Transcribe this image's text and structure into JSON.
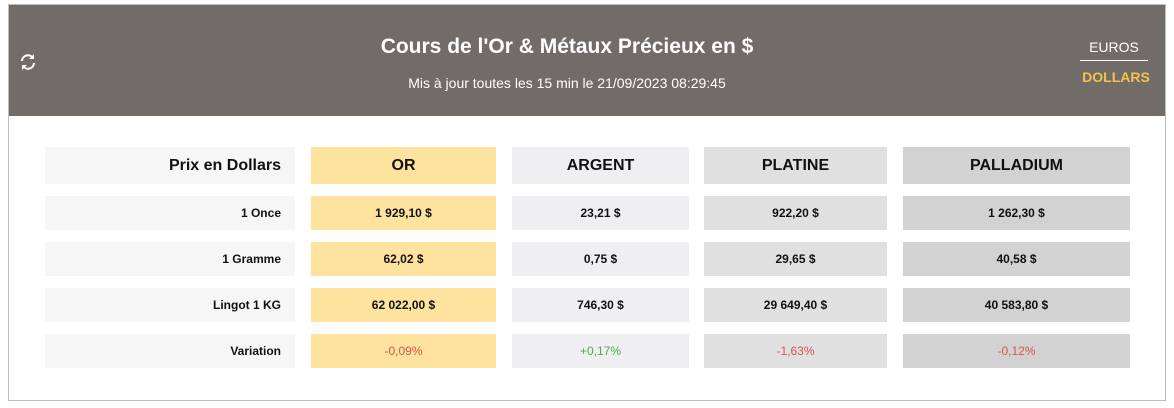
{
  "header": {
    "title": "Cours de l'Or & Métaux Précieux en $",
    "subtitle": "Mis à jour toutes les 15 min le 21/09/2023 08:29:45",
    "currencies": [
      "EUROS",
      "DOLLARS"
    ]
  },
  "table": {
    "columns": [
      "Prix en Dollars",
      "OR",
      "ARGENT",
      "PLATINE",
      "PALLADIUM"
    ],
    "rows": [
      [
        "1 Once",
        "1 929,10 $",
        "23,21 $",
        "922,20 $",
        "1 262,30 $"
      ],
      [
        "1 Gramme",
        "62,02 $",
        "0,75 $",
        "29,65 $",
        "40,58 $"
      ],
      [
        "Lingot 1 KG",
        "62 022,00 $",
        "746,30 $",
        "29 649,40 $",
        "40 583,80 $"
      ],
      [
        "Variation",
        "-0,09%",
        "+0,17%",
        "-1,63%",
        "-0,12%"
      ]
    ]
  }
}
